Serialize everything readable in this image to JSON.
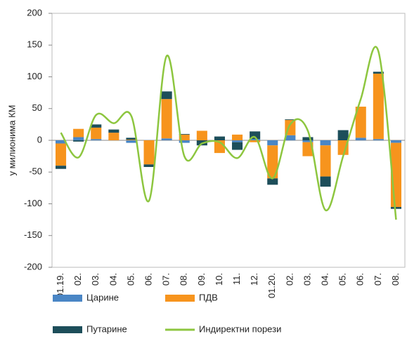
{
  "chart_data": {
    "type": "bar",
    "y_label": "у милионима КМ",
    "categories": [
      "01.19.",
      "02.",
      "03.",
      "04.",
      "05.",
      "06.",
      "07.",
      "08.",
      "09.",
      "10.",
      "11.",
      "12.",
      "01.20.",
      "02.",
      "03.",
      "04.",
      "05.",
      "06.",
      "07.",
      "08."
    ],
    "series": [
      {
        "name": "Царине",
        "type": "bar",
        "color": "#4a86c5",
        "values": [
          -5,
          5,
          2,
          0,
          -4,
          0,
          3,
          -4,
          0,
          0,
          -3,
          2,
          -8,
          8,
          -3,
          -8,
          0,
          4,
          2,
          -4
        ]
      },
      {
        "name": "ПДВ",
        "type": "bar",
        "color": "#f7941d",
        "values": [
          -35,
          13,
          18,
          12,
          1,
          -38,
          62,
          9,
          15,
          -20,
          9,
          -3,
          -52,
          24,
          -22,
          -49,
          -23,
          49,
          103,
          -101
        ]
      },
      {
        "name": "Путарине",
        "type": "bar",
        "color": "#1d4e5a",
        "values": [
          -5,
          -2,
          5,
          5,
          3,
          -4,
          12,
          1,
          -8,
          6,
          -12,
          12,
          -10,
          1,
          5,
          -16,
          16,
          0,
          3,
          -3
        ]
      },
      {
        "name": "Индиректни порези",
        "type": "line",
        "color": "#8dc63f",
        "values": [
          12,
          -27,
          40,
          27,
          38,
          -95,
          133,
          -25,
          -5,
          -3,
          -28,
          5,
          -60,
          25,
          15,
          -110,
          -25,
          65,
          140,
          -125
        ]
      }
    ],
    "ylim": [
      -200,
      200
    ],
    "yticks": [
      -200,
      -150,
      -100,
      -50,
      0,
      50,
      100,
      150,
      200
    ],
    "grid": false
  }
}
